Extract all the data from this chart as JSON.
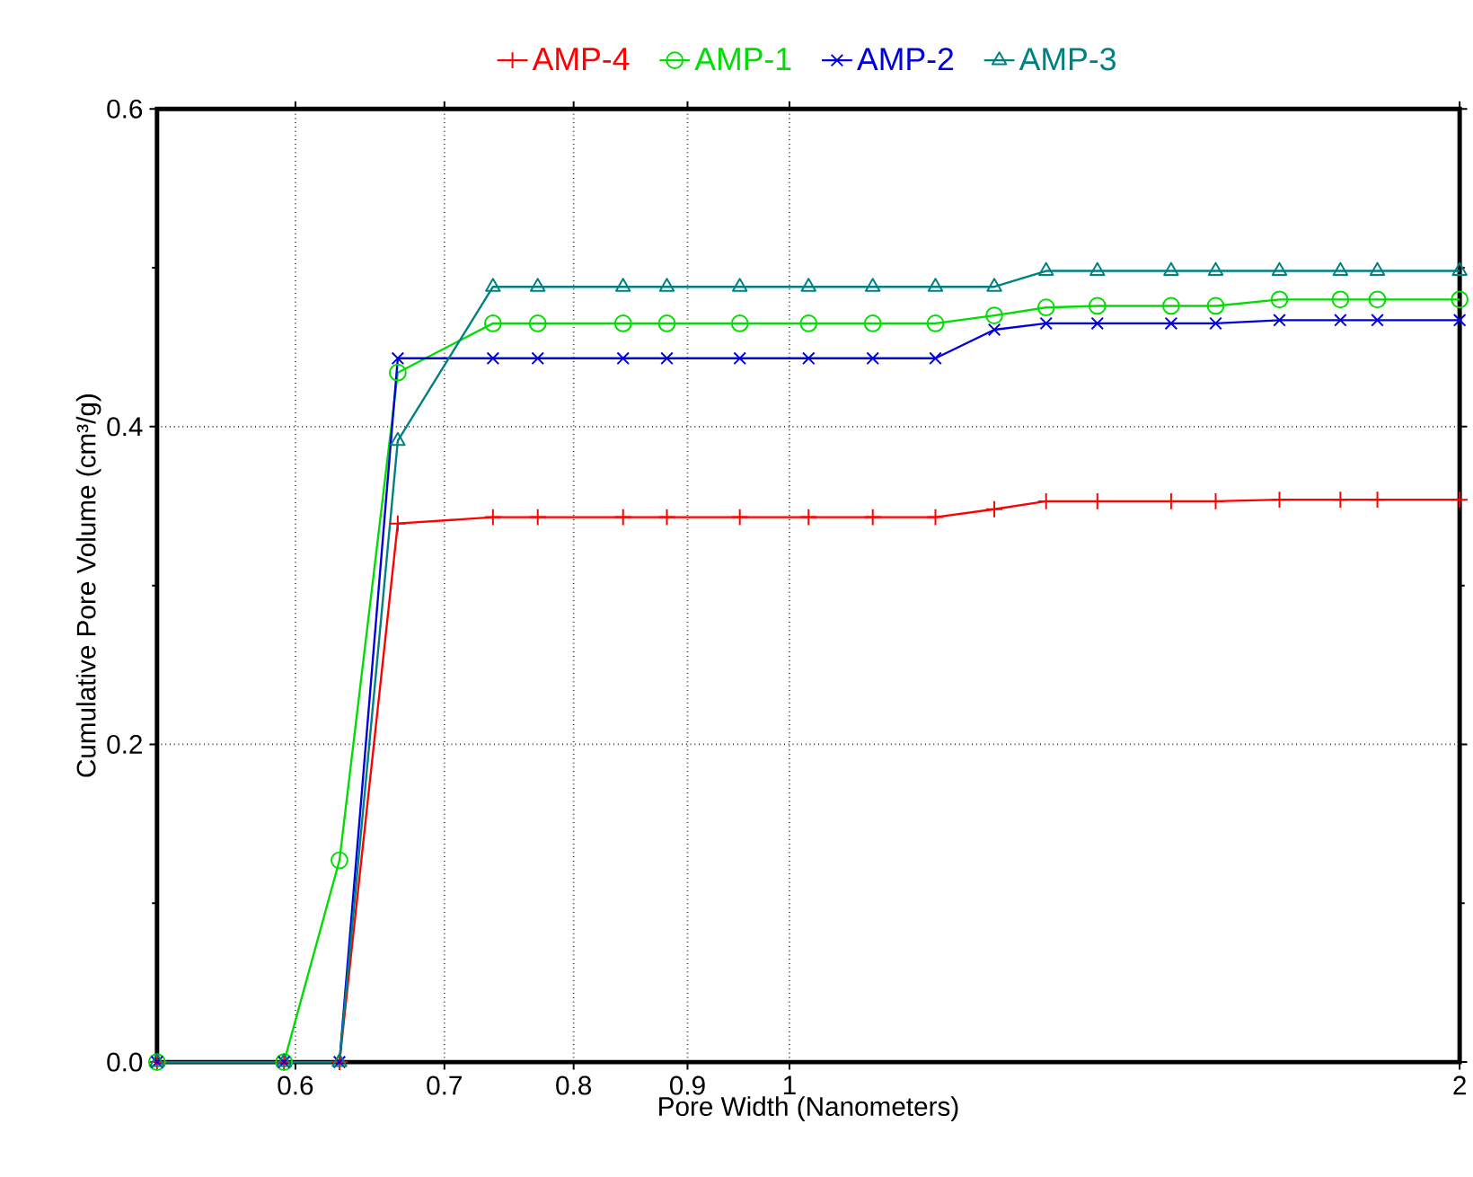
{
  "chart_data": {
    "type": "line",
    "xlabel": "Pore Width (Nanometers)",
    "ylabel": "Cumulative Pore Volume (cm³/g)",
    "log": "x",
    "grid": true,
    "legend": "top",
    "xlim": [
      0.52,
      2
    ],
    "ylim": [
      0,
      0.6
    ],
    "xticks": [
      0.6,
      0.7,
      0.8,
      0.9,
      1,
      2
    ],
    "yticks": [
      {
        "value": 0,
        "label": "0.0"
      },
      {
        "value": 0.2,
        "label": "0.2"
      },
      {
        "value": 0.4,
        "label": "0.4"
      },
      {
        "value": 0.6,
        "label": "0.6"
      }
    ],
    "x": [
      0.52,
      0.593,
      0.628,
      0.667,
      0.736,
      0.771,
      0.842,
      0.881,
      0.95,
      1.02,
      1.09,
      1.163,
      1.236,
      1.304,
      1.375,
      1.484,
      1.554,
      1.66,
      1.768,
      1.837,
      2.0
    ],
    "series": [
      {
        "name": "AMP-4",
        "color": "#ff0000",
        "marker": "plus",
        "values": [
          0,
          0,
          0,
          0.339,
          0.343,
          0.343,
          0.343,
          0.343,
          0.343,
          0.343,
          0.343,
          0.343,
          0.348,
          0.353,
          0.353,
          0.353,
          0.353,
          0.354,
          0.354,
          0.354,
          0.354
        ]
      },
      {
        "name": "AMP-1",
        "color": "#00dd00",
        "marker": "circle",
        "values": [
          0,
          0,
          0.127,
          0.434,
          0.465,
          0.465,
          0.465,
          0.465,
          0.465,
          0.465,
          0.465,
          0.465,
          0.47,
          0.475,
          0.476,
          0.476,
          0.476,
          0.48,
          0.48,
          0.48,
          0.48
        ]
      },
      {
        "name": "AMP-2",
        "color": "#0000dd",
        "marker": "cross",
        "values": [
          0,
          0,
          0,
          0.443,
          0.443,
          0.443,
          0.443,
          0.443,
          0.443,
          0.443,
          0.443,
          0.443,
          0.461,
          0.465,
          0.465,
          0.465,
          0.465,
          0.467,
          0.467,
          0.467,
          0.467
        ]
      },
      {
        "name": "AMP-3",
        "color": "#008080",
        "marker": "triangle",
        "values": [
          0,
          0,
          0,
          0.391,
          0.488,
          0.488,
          0.488,
          0.488,
          0.488,
          0.488,
          0.488,
          0.488,
          0.488,
          0.498,
          0.498,
          0.498,
          0.498,
          0.498,
          0.498,
          0.498,
          0.498
        ]
      }
    ]
  }
}
